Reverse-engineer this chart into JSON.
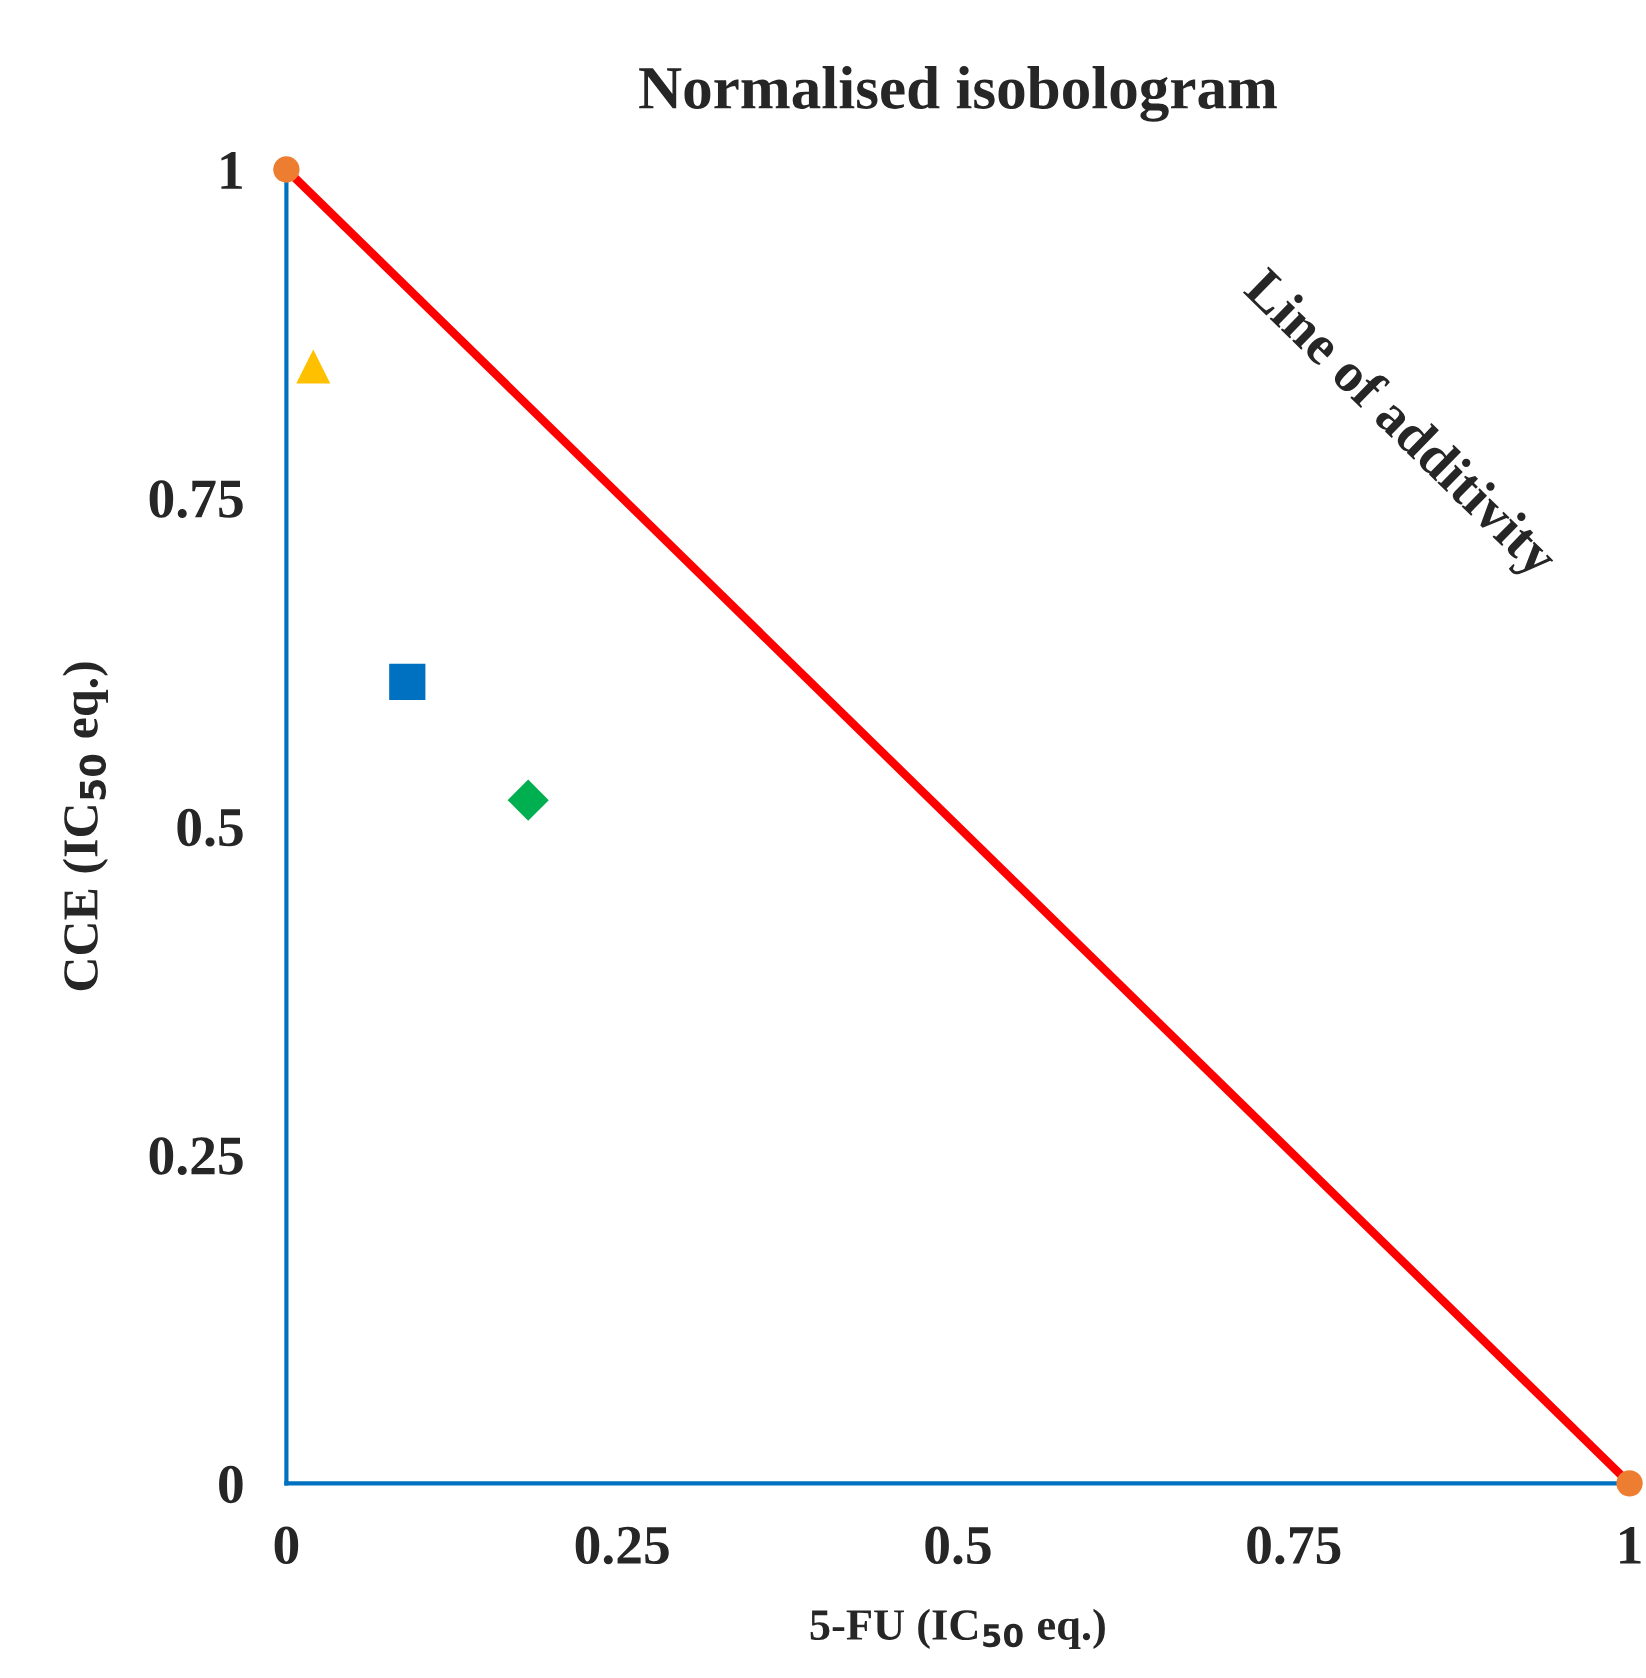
{
  "chart_data": {
    "type": "scatter",
    "title": "Normalised isobologram",
    "xlabel": "5-FU (IC$_{50}$ eq.)",
    "ylabel": "CCE (IC$_{50}$ eq.)",
    "xlim": [
      0,
      1
    ],
    "ylim": [
      0,
      1
    ],
    "xticks": [
      0,
      0.25,
      0.5,
      0.75,
      1
    ],
    "yticks": [
      0,
      0.25,
      0.5,
      0.75,
      1
    ],
    "grid": false,
    "legend": false,
    "series": [
      {
        "type": "line",
        "color": "#ff0000",
        "x": [
          0,
          1
        ],
        "values": [
          1,
          0
        ],
        "marker": "none",
        "line_style": "solid"
      },
      {
        "color": "#ed7d31",
        "x": [
          0,
          1
        ],
        "values": [
          1,
          0
        ],
        "marker": "circle"
      },
      {
        "color": "#ffc000",
        "x": [
          0.02
        ],
        "values": [
          0.85
        ],
        "marker": "triangle"
      },
      {
        "color": "#0070c0",
        "x": [
          0.09
        ],
        "values": [
          0.61
        ],
        "marker": "square"
      },
      {
        "color": "#00b050",
        "x": [
          0.18
        ],
        "values": [
          0.52
        ],
        "marker": "diamond"
      }
    ],
    "annotations": [
      "Line of additivity"
    ]
  }
}
